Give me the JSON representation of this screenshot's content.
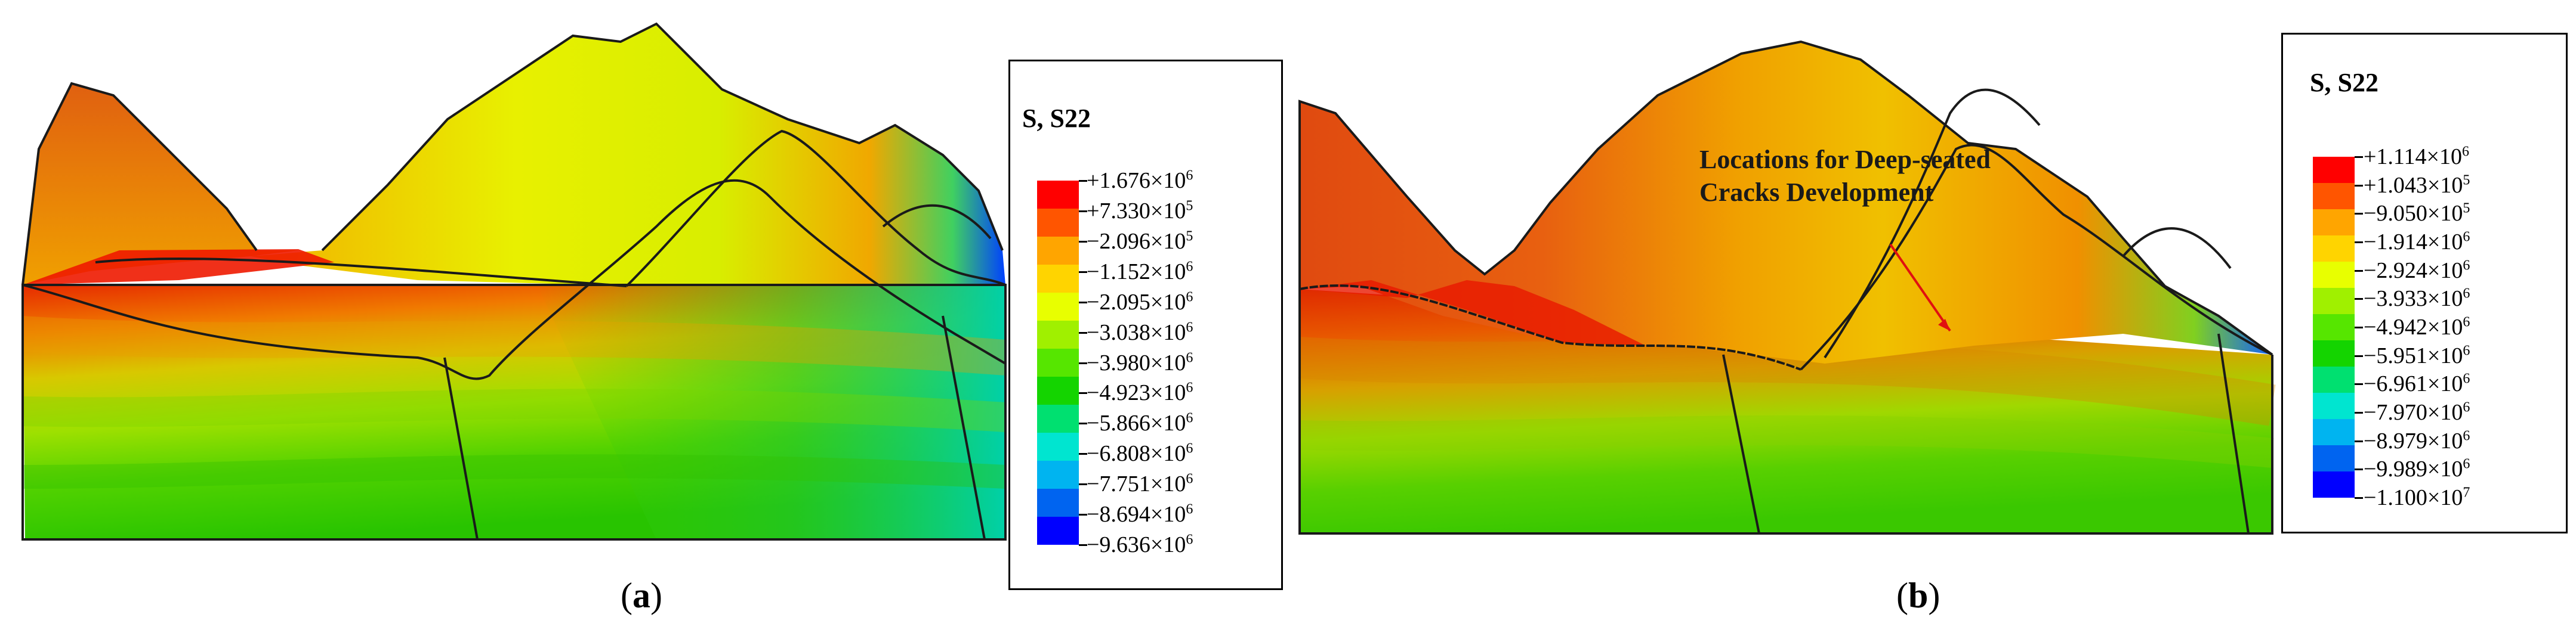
{
  "panels": [
    {
      "legend": {
        "title": "S, S22",
        "colors": [
          "#ff0000",
          "#ff5500",
          "#ffa500",
          "#ffd400",
          "#e8ff00",
          "#a0f000",
          "#56e600",
          "#14d400",
          "#00e070",
          "#00e5d0",
          "#00b4f0",
          "#0064f0",
          "#0000ff"
        ],
        "labels": [
          {
            "mant": "+1.676",
            "exp": "6"
          },
          {
            "mant": "+7.330",
            "exp": "5"
          },
          {
            "mant": "−2.096",
            "exp": "5"
          },
          {
            "mant": "−1.152",
            "exp": "6"
          },
          {
            "mant": "−2.095",
            "exp": "6"
          },
          {
            "mant": "−3.038",
            "exp": "6"
          },
          {
            "mant": "−3.980",
            "exp": "6"
          },
          {
            "mant": "−4.923",
            "exp": "6"
          },
          {
            "mant": "−5.866",
            "exp": "6"
          },
          {
            "mant": "−6.808",
            "exp": "6"
          },
          {
            "mant": "−7.751",
            "exp": "6"
          },
          {
            "mant": "−8.694",
            "exp": "6"
          },
          {
            "mant": "−9.636",
            "exp": "6"
          }
        ]
      },
      "caption": {
        "open": "(",
        "letter": "a",
        "close": ")"
      }
    },
    {
      "legend": {
        "title": "S, S22",
        "colors": [
          "#ff0000",
          "#ff5500",
          "#ffa500",
          "#ffd400",
          "#e8ff00",
          "#a0f000",
          "#56e600",
          "#14d400",
          "#00e070",
          "#00e5d0",
          "#00b4f0",
          "#0064f0",
          "#0000ff"
        ],
        "labels": [
          {
            "mant": "+1.114",
            "exp": "6"
          },
          {
            "mant": "+1.043",
            "exp": "5"
          },
          {
            "mant": "−9.050",
            "exp": "5"
          },
          {
            "mant": "−1.914",
            "exp": "6"
          },
          {
            "mant": "−2.924",
            "exp": "6"
          },
          {
            "mant": "−3.933",
            "exp": "6"
          },
          {
            "mant": "−4.942",
            "exp": "6"
          },
          {
            "mant": "−5.951",
            "exp": "6"
          },
          {
            "mant": "−6.961",
            "exp": "6"
          },
          {
            "mant": "−7.970",
            "exp": "6"
          },
          {
            "mant": "−8.979",
            "exp": "6"
          },
          {
            "mant": "−9.989",
            "exp": "6"
          },
          {
            "mant": "−1.100",
            "exp": "7"
          }
        ]
      },
      "caption": {
        "open": "(",
        "letter": "b",
        "close": ")"
      },
      "annotation": {
        "line1": "Locations for Deep-seated",
        "line2": "Cracks Development"
      }
    }
  ]
}
